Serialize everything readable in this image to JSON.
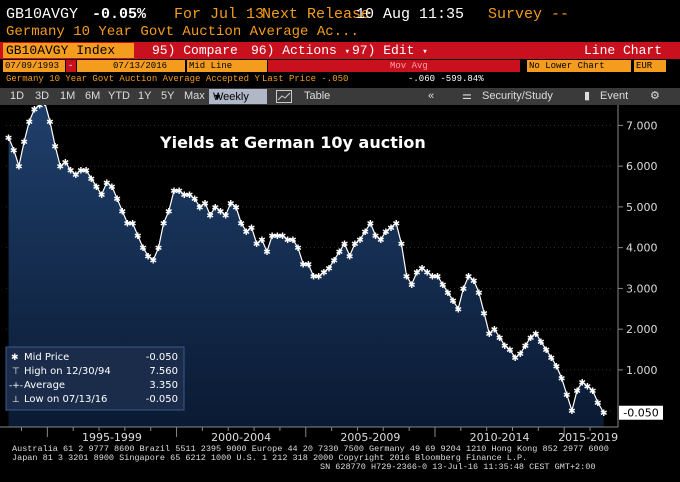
{
  "header": {
    "ticker": "GB10AVGY",
    "change": "-0.05%",
    "for_date": "For Jul 13",
    "next_release_label": "Next Release",
    "next_release_date": "10 Aug 11:35",
    "survey": "Survey --",
    "description": "Germany 10 Year Govt Auction Average Ac..."
  },
  "menu": {
    "security": "GB10AVGY Index",
    "compare_num": "95)",
    "compare": "Compare",
    "actions_num": "96)",
    "actions": "Actions",
    "edit_num": "97)",
    "edit": "Edit",
    "view": "Line Chart"
  },
  "fields": {
    "start_date": "07/09/1993",
    "end_date": "07/13/2016",
    "line_type": "Mid Line",
    "mov_avg": "Mov Avg",
    "lower_chart": "No Lower Chart",
    "currency": "EUR"
  },
  "legend_line": {
    "label": "Germany 10 Year Govt Auction Average Accepted Y",
    "last_price": "Last Price -.050",
    "change": "-.060 -599.84%"
  },
  "tabs": [
    "1D",
    "3D",
    "1M",
    "6M",
    "YTD",
    "1Y",
    "5Y",
    "Max",
    "Weekly",
    "Table",
    "Security/Study",
    "Event"
  ],
  "chart_data": {
    "type": "line",
    "title": "Yields at German 10y auction",
    "x_labels": [
      "1995-1999",
      "2000-2004",
      "2005-2009",
      "2010-2014",
      "2015-2019"
    ],
    "ylim": [
      -0.4,
      7.5
    ],
    "y_ticks": [
      "7.000",
      "6.000",
      "5.000",
      "4.000",
      "3.000",
      "2.000",
      "1.000",
      "-0.050"
    ],
    "last_value": "-0.050",
    "series": [
      {
        "name": "Mid Price",
        "x": [
          1993.5,
          1993.7,
          1993.9,
          1994.1,
          1994.3,
          1994.5,
          1994.7,
          1994.9,
          1995.1,
          1995.3,
          1995.5,
          1995.7,
          1995.9,
          1996.1,
          1996.3,
          1996.5,
          1996.7,
          1996.9,
          1997.1,
          1997.3,
          1997.5,
          1997.7,
          1997.9,
          1998.1,
          1998.3,
          1998.5,
          1998.7,
          1998.9,
          1999.1,
          1999.3,
          1999.5,
          1999.7,
          1999.9,
          2000.1,
          2000.3,
          2000.5,
          2000.7,
          2000.9,
          2001.1,
          2001.3,
          2001.5,
          2001.7,
          2001.9,
          2002.1,
          2002.3,
          2002.5,
          2002.7,
          2002.9,
          2003.1,
          2003.3,
          2003.5,
          2003.7,
          2003.9,
          2004.1,
          2004.3,
          2004.5,
          2004.7,
          2004.9,
          2005.1,
          2005.3,
          2005.5,
          2005.7,
          2005.9,
          2006.1,
          2006.3,
          2006.5,
          2006.7,
          2006.9,
          2007.1,
          2007.3,
          2007.5,
          2007.7,
          2007.9,
          2008.1,
          2008.3,
          2008.5,
          2008.7,
          2008.9,
          2009.1,
          2009.3,
          2009.5,
          2009.7,
          2009.9,
          2010.1,
          2010.3,
          2010.5,
          2010.7,
          2010.9,
          2011.1,
          2011.3,
          2011.5,
          2011.7,
          2011.9,
          2012.1,
          2012.3,
          2012.5,
          2012.7,
          2012.9,
          2013.1,
          2013.3,
          2013.5,
          2013.7,
          2013.9,
          2014.1,
          2014.3,
          2014.5,
          2014.7,
          2014.9,
          2015.1,
          2015.3,
          2015.5,
          2015.7,
          2015.9,
          2016.1,
          2016.3,
          2016.53
        ],
        "values": [
          6.7,
          6.4,
          6.0,
          6.6,
          7.1,
          7.4,
          7.5,
          7.56,
          7.1,
          6.5,
          6.0,
          6.1,
          5.9,
          5.8,
          5.9,
          5.9,
          5.7,
          5.5,
          5.3,
          5.6,
          5.5,
          5.2,
          4.9,
          4.6,
          4.6,
          4.3,
          4.0,
          3.8,
          3.7,
          4.0,
          4.6,
          4.9,
          5.4,
          5.4,
          5.3,
          5.3,
          5.2,
          5.0,
          5.1,
          4.8,
          5.0,
          4.9,
          4.8,
          5.1,
          5.0,
          4.6,
          4.4,
          4.5,
          4.1,
          4.2,
          3.9,
          4.3,
          4.3,
          4.3,
          4.2,
          4.2,
          4.0,
          3.6,
          3.6,
          3.3,
          3.3,
          3.4,
          3.5,
          3.7,
          3.9,
          4.1,
          3.8,
          4.1,
          4.2,
          4.4,
          4.6,
          4.3,
          4.2,
          4.4,
          4.5,
          4.6,
          4.1,
          3.3,
          3.1,
          3.4,
          3.5,
          3.4,
          3.3,
          3.3,
          3.1,
          2.9,
          2.7,
          2.5,
          3.0,
          3.3,
          3.2,
          2.9,
          2.4,
          1.9,
          2.0,
          1.8,
          1.6,
          1.5,
          1.3,
          1.4,
          1.6,
          1.8,
          1.9,
          1.7,
          1.5,
          1.3,
          1.1,
          0.8,
          0.4,
          0.0,
          0.5,
          0.7,
          0.6,
          0.5,
          0.2,
          -0.05
        ]
      }
    ]
  },
  "legend_box": {
    "rows": [
      {
        "label": "Mid Price",
        "value": "-0.050"
      },
      {
        "label": "High on 12/30/94",
        "value": "7.560"
      },
      {
        "label": "Average",
        "value": "3.350"
      },
      {
        "label": "Low on 07/13/16",
        "value": "-0.050"
      }
    ]
  },
  "footer": {
    "line1": "Australia 61 2 9777 8600 Brazil 5511 2395 9000 Europe 44 20 7330 7500 Germany 49 69 9204 1210 Hong Kong 852 2977 6000",
    "line2": "Japan 81 3 3201 8900         Singapore 65 6212 1000         U.S. 1 212 318 2000         Copyright 2016 Bloomberg Finance L.P.",
    "line3": "SN 628770 H729-2366-0 13-Jul-16 11:35:48 CEST GMT+2:00"
  },
  "colors": {
    "orange": "#f39c1e",
    "red_bar": "#c8101f",
    "area_top": "#1f3f6b",
    "area_bottom": "#0a1a33"
  }
}
